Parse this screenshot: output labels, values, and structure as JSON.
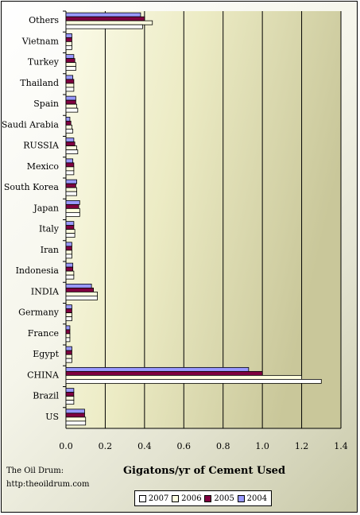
{
  "chart_data": {
    "type": "bar",
    "orientation": "horizontal",
    "title": "",
    "xlabel": "Gigatons/yr of Cement Used",
    "ylabel": "",
    "xlim": [
      0,
      1.4
    ],
    "x_ticks": [
      "0.0",
      "0.2",
      "0.4",
      "0.6",
      "0.8",
      "1.0",
      "1.2",
      "1.4"
    ],
    "grid": "vertical",
    "legend_position": "bottom",
    "categories": [
      "US",
      "Brazil",
      "CHINA",
      "Egypt",
      "France",
      "Germany",
      "INDIA",
      "Indonesia",
      "Iran",
      "Italy",
      "Japan",
      "South Korea",
      "Mexico",
      "RUSSIA",
      "Saudi Arabia",
      "Spain",
      "Thailand",
      "Turkey",
      "Vietnam",
      "Others"
    ],
    "series": [
      {
        "name": "2007",
        "color": "#ffffff",
        "values": [
          0.1,
          0.04,
          1.3,
          0.03,
          0.02,
          0.03,
          0.16,
          0.04,
          0.03,
          0.045,
          0.07,
          0.055,
          0.04,
          0.06,
          0.035,
          0.06,
          0.04,
          0.05,
          0.03,
          0.39
        ]
      },
      {
        "name": "2006",
        "color": "#ffffe0",
        "values": [
          0.1,
          0.04,
          1.2,
          0.03,
          0.02,
          0.03,
          0.16,
          0.04,
          0.03,
          0.045,
          0.07,
          0.055,
          0.04,
          0.055,
          0.03,
          0.055,
          0.04,
          0.05,
          0.03,
          0.44
        ]
      },
      {
        "name": "2005",
        "color": "#800040",
        "values": [
          0.095,
          0.04,
          1.0,
          0.03,
          0.02,
          0.03,
          0.14,
          0.035,
          0.03,
          0.04,
          0.065,
          0.05,
          0.04,
          0.045,
          0.025,
          0.05,
          0.04,
          0.045,
          0.03,
          0.4
        ]
      },
      {
        "name": "2004",
        "color": "#9999ff",
        "values": [
          0.095,
          0.04,
          0.93,
          0.03,
          0.02,
          0.03,
          0.13,
          0.035,
          0.03,
          0.04,
          0.07,
          0.055,
          0.035,
          0.04,
          0.02,
          0.05,
          0.035,
          0.04,
          0.03,
          0.38
        ]
      }
    ]
  },
  "credits": {
    "line1": "The Oil Drum:",
    "line2": "http:theoildrum.com"
  }
}
